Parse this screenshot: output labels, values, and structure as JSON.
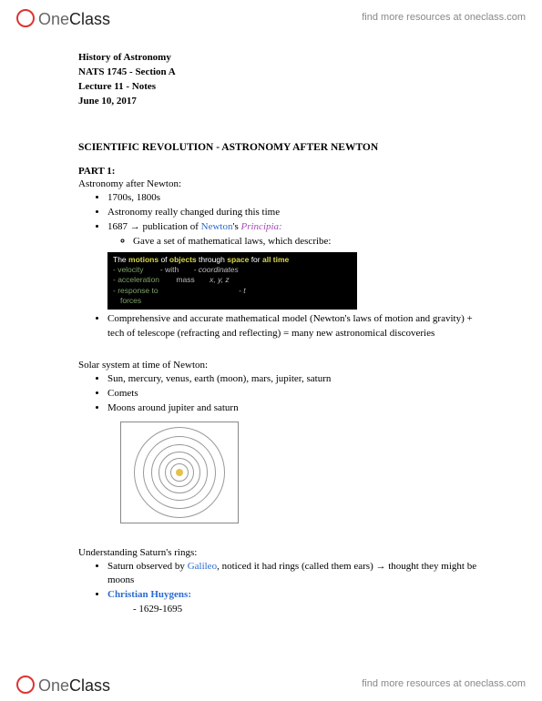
{
  "brand": {
    "part1": "One",
    "part2": "Class"
  },
  "tagline": "find more resources at oneclass.com",
  "meta": {
    "course_title": "History of Astronomy",
    "course_code": "NATS 1745 - Section A",
    "lecture": "Lecture 11 - Notes",
    "date": "June 10, 2017"
  },
  "section_title": "SCIENTIFIC REVOLUTION - ASTRONOMY AFTER NEWTON",
  "part1": {
    "label": "PART 1:",
    "heading": "Astronomy after Newton:",
    "bullets": {
      "b1": "1700s, 1800s",
      "b2": "Astronomy really changed during this time",
      "b3_pre": "1687 → publication of ",
      "b3_newton": "Newton",
      "b3_mid": "'s ",
      "b3_principia": "Principia:",
      "b3_sub": "Gave a set of mathematical laws, which describe:",
      "b4": "Comprehensive and accurate mathematical model (Newton's laws of motion and gravity) + tech of telescope (refracting and reflecting) = many new astronomical discoveries"
    }
  },
  "darkbox": {
    "hdr_pre": "The ",
    "hdr_w1": "motions",
    "hdr_mid1": " of ",
    "hdr_w2": "objects",
    "hdr_mid2": " through ",
    "hdr_w3": "space",
    "hdr_mid3": " for ",
    "hdr_w4": "all time",
    "r1c1": "- velocity",
    "r1c2": "- with",
    "r1c3": "- coordinates",
    "r2c1": "- acceleration",
    "r2c2": "mass",
    "r2c3": "x, y, z",
    "r3c1": "- response to",
    "r3c3": "- t",
    "r4c1": "forces"
  },
  "solar": {
    "heading": "Solar system at time of Newton:",
    "b1": "Sun, mercury, venus, earth (moon), mars, jupiter, saturn",
    "b2": "Comets",
    "b3": "Moons around jupiter and saturn"
  },
  "rings": {
    "heading": "Understanding Saturn's rings:",
    "b1_pre": "Saturn observed by ",
    "b1_galileo": "Galileo",
    "b1_post": ", noticed it had rings (called them ears) → thought they might be moons",
    "b2": "Christian Huygens:",
    "b2_sub": "1629-1695"
  },
  "diagram": {
    "orbit_sizes": [
      20,
      32,
      46,
      62,
      80,
      100
    ],
    "border_color": "#888",
    "orbit_color": "#999",
    "sun_color": "#e6c14a"
  }
}
